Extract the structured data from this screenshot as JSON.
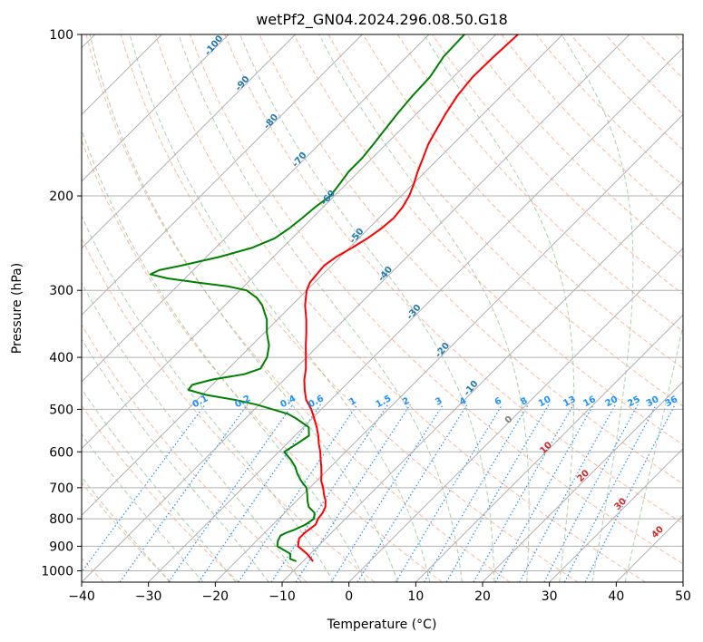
{
  "chart_data": {
    "type": "line",
    "title": "wetPf2_GN04.2024.296.08.50.G18",
    "xlabel": "Temperature (°C)",
    "ylabel": "Pressure (hPa)",
    "xlim": [
      -40,
      50
    ],
    "ylim": [
      1050,
      100
    ],
    "y_scale": "log",
    "skew": "skew-T log-P",
    "x_ticks": [
      -40,
      -30,
      -20,
      -10,
      0,
      10,
      20,
      30,
      40,
      50
    ],
    "x_tick_labels": [
      "−40",
      "−30",
      "−20",
      "−10",
      "0",
      "10",
      "20",
      "30",
      "40",
      "50"
    ],
    "y_ticks": [
      100,
      200,
      300,
      400,
      500,
      600,
      700,
      800,
      900,
      1000
    ],
    "y_tick_labels": [
      "100",
      "200",
      "300",
      "400",
      "500",
      "600",
      "700",
      "800",
      "900",
      "1000"
    ],
    "grid": true,
    "colors": {
      "temperature": "#ff0000",
      "dewpoint": "#008000",
      "isotherm": "#b0b0b0",
      "dry_adiabat": "#ffa07a",
      "moist_adiabat": "#90c090",
      "mixing_ratio": "#1e90ff",
      "label_blue": "#1f77b4",
      "label_red": "#d62728"
    },
    "series": [
      {
        "name": "",
        "color": "#ff0000",
        "pressure": [
          960,
          930,
          900,
          870,
          850,
          820,
          800,
          780,
          760,
          740,
          720,
          700,
          680,
          660,
          640,
          620,
          600,
          580,
          560,
          540,
          520,
          500,
          480,
          460,
          440,
          420,
          400,
          380,
          360,
          340,
          320,
          300,
          290,
          280,
          270,
          260,
          250,
          240,
          230,
          220,
          210,
          200,
          190,
          180,
          170,
          160,
          150,
          140,
          130,
          120,
          110,
          100
        ],
        "values": [
          -8.5,
          -10.5,
          -13.0,
          -14.0,
          -14.0,
          -13.6,
          -14.1,
          -14.3,
          -14.8,
          -15.7,
          -16.9,
          -18.0,
          -19.3,
          -20.3,
          -21.4,
          -22.6,
          -23.8,
          -25.2,
          -26.5,
          -28.0,
          -29.7,
          -31.5,
          -33.7,
          -35.4,
          -37.0,
          -38.4,
          -40.1,
          -41.9,
          -43.7,
          -45.7,
          -48.0,
          -50.0,
          -50.7,
          -50.9,
          -51.1,
          -50.6,
          -49.6,
          -48.7,
          -48.1,
          -47.8,
          -48.1,
          -48.8,
          -49.9,
          -51.2,
          -52.4,
          -53.7,
          -54.7,
          -55.7,
          -56.6,
          -57.1,
          -57.0,
          -56.7
        ]
      },
      {
        "name": "",
        "color": "#008000",
        "pressure": [
          960,
          950,
          930,
          900,
          880,
          860,
          850,
          840,
          820,
          800,
          780,
          760,
          740,
          720,
          700,
          680,
          660,
          640,
          620,
          600,
          580,
          560,
          540,
          520,
          510,
          500,
          490,
          480,
          470,
          460,
          450,
          440,
          430,
          420,
          400,
          380,
          360,
          340,
          320,
          310,
          300,
          295,
          290,
          285,
          280,
          275,
          270,
          260,
          250,
          240,
          230,
          220,
          210,
          200,
          190,
          180,
          170,
          160,
          150,
          140,
          130,
          120,
          110,
          100
        ],
        "values": [
          -11.0,
          -12.3,
          -13.0,
          -16.1,
          -16.8,
          -17.2,
          -16.8,
          -16.1,
          -15.1,
          -14.7,
          -15.5,
          -17.3,
          -18.4,
          -19.4,
          -20.5,
          -22.3,
          -23.9,
          -25.3,
          -27.1,
          -29.2,
          -28.5,
          -27.9,
          -29.2,
          -32.4,
          -34.3,
          -37.3,
          -40.4,
          -44.4,
          -49.4,
          -52.8,
          -53.0,
          -50.8,
          -46.8,
          -45.2,
          -45.9,
          -47.4,
          -49.6,
          -51.6,
          -54.4,
          -56.3,
          -59.0,
          -62.3,
          -67.6,
          -72.6,
          -75.8,
          -75.1,
          -72.6,
          -68.1,
          -64.6,
          -62.6,
          -61.9,
          -61.5,
          -61.2,
          -60.6,
          -61.0,
          -61.5,
          -61.5,
          -61.9,
          -62.4,
          -62.9,
          -63.3,
          -63.5,
          -64.5,
          -64.7
        ]
      }
    ],
    "dry_adiabat_labels": [
      "0",
      "10",
      "20",
      "30",
      "40"
    ],
    "moist_adiabat_labels": [
      "-100",
      "-90",
      "-80",
      "-70",
      "-60",
      "-50",
      "-40",
      "-30",
      "-20",
      "-10"
    ],
    "mixing_ratio_labels": [
      "0.1",
      "0.2",
      "0.4",
      "0.6",
      "1",
      "1.5",
      "2",
      "3",
      "4",
      "6",
      "8",
      "10",
      "13",
      "16",
      "20",
      "25",
      "30",
      "36"
    ]
  }
}
